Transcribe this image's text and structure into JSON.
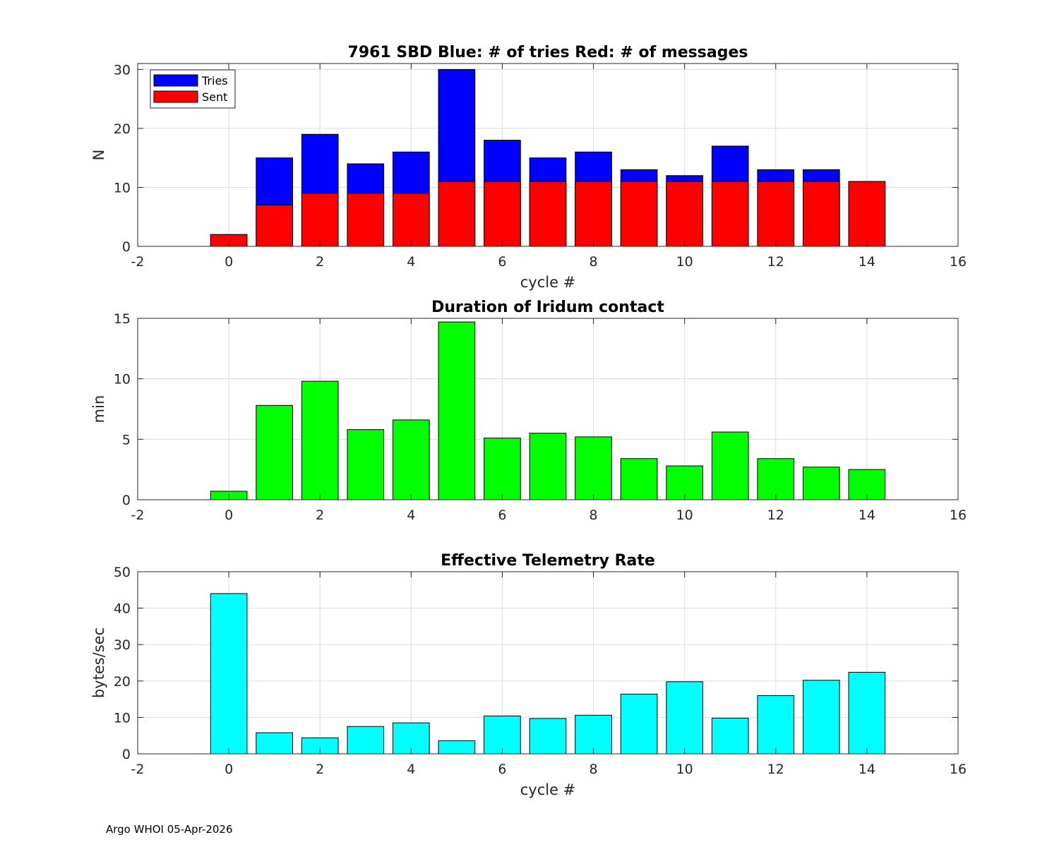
{
  "chart_data": [
    {
      "type": "bar",
      "title": "7961 SBD  Blue: # of tries   Red: # of messages",
      "xlabel": "cycle #",
      "ylabel": "N",
      "xlim": [
        -2,
        16
      ],
      "ylim": [
        0,
        31
      ],
      "xticks": [
        -2,
        0,
        2,
        4,
        6,
        8,
        10,
        12,
        14,
        16
      ],
      "yticks": [
        0,
        10,
        20,
        30
      ],
      "grid": true,
      "legend": "top-left",
      "x": [
        0,
        1,
        2,
        3,
        4,
        5,
        6,
        7,
        8,
        9,
        10,
        11,
        12,
        13,
        14
      ],
      "series": [
        {
          "name": "Tries",
          "color": "#0000ff",
          "values": [
            2,
            15,
            19,
            14,
            16,
            30,
            18,
            15,
            16,
            13,
            12,
            17,
            13,
            13,
            11
          ]
        },
        {
          "name": "Sent",
          "color": "#ff0000",
          "values": [
            2,
            7,
            9,
            9,
            9,
            11,
            11,
            11,
            11,
            11,
            11,
            11,
            11,
            11,
            11
          ]
        }
      ]
    },
    {
      "type": "bar",
      "title": "Duration of Iridum contact",
      "xlabel": "",
      "ylabel": "min",
      "xlim": [
        -2,
        16
      ],
      "ylim": [
        0,
        15
      ],
      "xticks": [
        -2,
        0,
        2,
        4,
        6,
        8,
        10,
        12,
        14,
        16
      ],
      "yticks": [
        0,
        5,
        10,
        15
      ],
      "grid": true,
      "x": [
        0,
        1,
        2,
        3,
        4,
        5,
        6,
        7,
        8,
        9,
        10,
        11,
        12,
        13,
        14
      ],
      "series": [
        {
          "name": "Duration",
          "color": "#00ff00",
          "values": [
            0.7,
            7.8,
            9.8,
            5.8,
            6.6,
            14.7,
            5.1,
            5.5,
            5.2,
            3.4,
            2.8,
            5.6,
            3.4,
            2.7,
            2.5
          ]
        }
      ]
    },
    {
      "type": "bar",
      "title": "Effective Telemetry Rate",
      "xlabel": "cycle #",
      "ylabel": "bytes/sec",
      "xlim": [
        -2,
        16
      ],
      "ylim": [
        0,
        50
      ],
      "xticks": [
        -2,
        0,
        2,
        4,
        6,
        8,
        10,
        12,
        14,
        16
      ],
      "yticks": [
        0,
        10,
        20,
        30,
        40,
        50
      ],
      "grid": true,
      "x": [
        0,
        1,
        2,
        3,
        4,
        5,
        6,
        7,
        8,
        9,
        10,
        11,
        12,
        13,
        14
      ],
      "series": [
        {
          "name": "Rate",
          "color": "#00ffff",
          "values": [
            44,
            5.8,
            4.4,
            7.5,
            8.5,
            3.6,
            10.4,
            9.7,
            10.6,
            16.4,
            19.8,
            9.8,
            16,
            20.2,
            22.4
          ]
        }
      ]
    }
  ],
  "footer": "Argo WHOI 05-Apr-2026"
}
